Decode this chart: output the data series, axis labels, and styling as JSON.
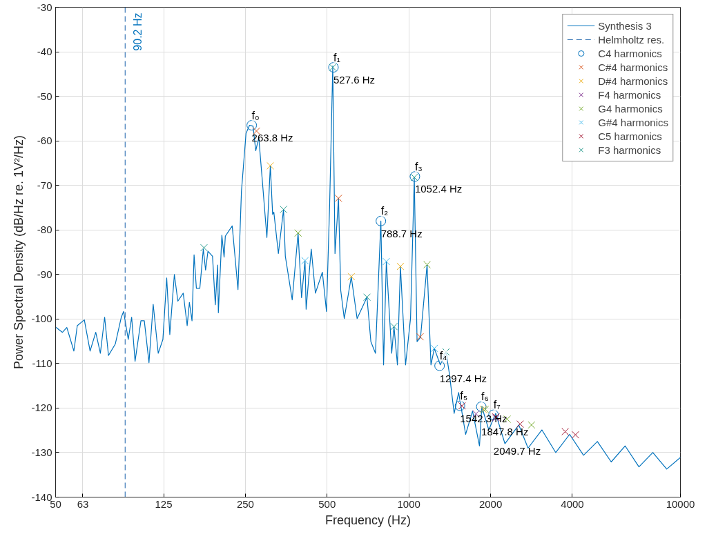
{
  "chart_data": {
    "type": "line",
    "xlabel": "Frequency (Hz)",
    "ylabel": "Power Spectral Density (dB/Hz re. 1V²/Hz)",
    "log": "x",
    "xlim": [
      50,
      10000
    ],
    "xticks": [
      50,
      63,
      125,
      250,
      500,
      1000,
      2000,
      4000,
      10000
    ],
    "ylim": [
      -140,
      -30
    ],
    "yticks": [
      -140,
      -130,
      -120,
      -110,
      -100,
      -90,
      -80,
      -70,
      -60,
      -50,
      -40,
      -30
    ],
    "grid": true,
    "legend": "top right",
    "series": [
      {
        "name": "Synthesis 3",
        "color": "#0072bd",
        "x": [
          50,
          53.0,
          55.0,
          58.4,
          60.1,
          63.8,
          67.0,
          70.3,
          73.1,
          75.8,
          78.3,
          83.0,
          87.3,
          89.0,
          92.6,
          95.3,
          98.1,
          103.1,
          106.1,
          110.4,
          114.4,
          119.4,
          124.2,
          128.3,
          131.7,
          136.9,
          141.0,
          147.6,
          152.6,
          155.5,
          159.0,
          161.8,
          165.0,
          169.9,
          175.0,
          178.4,
          182.0,
          189.2,
          193.7,
          197.6,
          198.8,
          204.8,
          208.7,
          210.9,
          223.6,
          234.8,
          241.8,
          251.4,
          259.0,
          266.7,
          273.0,
          280.1,
          288.4,
          300.0,
          308.9,
          315.0,
          318.2,
          330.7,
          345.5,
          350.8,
          371.9,
          390.9,
          402.5,
          414.5,
          418.4,
          437.0,
          452.7,
          480.2,
          497.3,
          511.0,
          524.5,
          534.5,
          550.6,
          561.2,
          578.2,
          613.6,
          644.7,
          701.0,
          724.6,
          753.3,
          788.6,
          806.9,
          826.0,
          864.5,
          881.5,
          907.4,
          930.8,
          972.4,
          1014,
          1047,
          1072,
          1104,
          1167,
          1206,
          1241,
          1305,
          1370,
          1411,
          1468,
          1525,
          1556,
          1618,
          1716,
          1820,
          1856,
          1969,
          2088,
          2258,
          2540,
          2747,
          3089,
          3475,
          3908,
          4397,
          4945,
          5561,
          6256,
          7036,
          7913,
          8904,
          10000
        ],
        "values": [
          -101.8,
          -103.0,
          -101.9,
          -107.2,
          -101.5,
          -100.2,
          -107.2,
          -103.0,
          -107.7,
          -99.6,
          -108.2,
          -105.6,
          -99.6,
          -98.3,
          -104.6,
          -99.6,
          -109.5,
          -100.4,
          -100.4,
          -109.8,
          -96.7,
          -107.7,
          -104.6,
          -90.8,
          -103.5,
          -90.0,
          -96.0,
          -94.2,
          -101.5,
          -96.3,
          -100.4,
          -85.6,
          -93.1,
          -93.1,
          -84.3,
          -89.0,
          -84.8,
          -85.9,
          -96.8,
          -87.9,
          -98.6,
          -81.2,
          -86.1,
          -81.4,
          -79.1,
          -93.4,
          -71.3,
          -58.3,
          -56.5,
          -56.7,
          -62.2,
          -59.3,
          -68.7,
          -81.7,
          -65.6,
          -76.5,
          -76.0,
          -85.3,
          -75.4,
          -85.9,
          -95.7,
          -80.7,
          -95.2,
          -86.9,
          -97.8,
          -84.3,
          -94.2,
          -89.5,
          -98.3,
          -73.9,
          -43.2,
          -85.3,
          -72.9,
          -93.6,
          -99.9,
          -90.5,
          -99.9,
          -95.1,
          -105.1,
          -107.7,
          -78.0,
          -110.3,
          -87.1,
          -107.7,
          -101.7,
          -110.3,
          -88.2,
          -110.3,
          -99.9,
          -68.2,
          -105.1,
          -104.1,
          -87.8,
          -110.3,
          -106.6,
          -110.3,
          -107.4,
          -112.4,
          -121.2,
          -116.5,
          -119.7,
          -125.9,
          -120.7,
          -128.5,
          -119.7,
          -124.9,
          -121.2,
          -128.0,
          -123.8,
          -129.0,
          -124.9,
          -130.0,
          -125.9,
          -130.6,
          -127.5,
          -132.1,
          -128.5,
          -133.2,
          -130.0,
          -133.7,
          -131.1
        ]
      },
      {
        "name": "Helmholtz res.",
        "type": "line",
        "line_style": "dashed",
        "color": "#3d7ab8",
        "x": [
          90.2,
          90.2
        ],
        "values": [
          -140,
          -30
        ]
      },
      {
        "name": "C4 harmonics",
        "type": "scatter",
        "marker": "circle",
        "color": "#0072bd",
        "x": [
          263.8,
          527.6,
          788.7,
          1052.4,
          1297.4,
          1542.3,
          1847.8,
          2049.7
        ],
        "values": [
          -56.5,
          -43.5,
          -78.0,
          -68.0,
          -110.5,
          -119.5,
          -119.7,
          -121.5
        ]
      },
      {
        "name": "C#4 harmonics",
        "type": "scatter",
        "marker": "cross",
        "color": "#d95319",
        "x": [
          274.7,
          550.6,
          1100
        ],
        "values": [
          -57.8,
          -72.9,
          -104.0
        ]
      },
      {
        "name": "D#4 harmonics",
        "type": "scatter",
        "marker": "cross",
        "color": "#edb120",
        "x": [
          308.9,
          613.6,
          930.8,
          1880
        ],
        "values": [
          -65.6,
          -90.5,
          -88.2,
          -120.3
        ]
      },
      {
        "name": "F4 harmonics",
        "type": "scatter",
        "marker": "cross",
        "color": "#7e2f8e",
        "x": [
          1767,
          2088
        ],
        "values": [
          -121.3,
          -122.2
        ]
      },
      {
        "name": "G4 harmonics",
        "type": "scatter",
        "marker": "cross",
        "color": "#77ac30",
        "x": [
          390.9,
          1167,
          1912,
          2302,
          2828
        ],
        "values": [
          -80.7,
          -87.8,
          -120.3,
          -122.5,
          -123.8
        ]
      },
      {
        "name": "G#4 harmonics",
        "type": "scatter",
        "marker": "cross",
        "color": "#4dbeee",
        "x": [
          414.5,
          826.0,
          1241
        ],
        "values": [
          -86.9,
          -87.1,
          -106.6
        ]
      },
      {
        "name": "C5 harmonics",
        "type": "scatter",
        "marker": "cross",
        "color": "#a2142f",
        "x": [
          1570,
          2093,
          2570,
          3765,
          4107
        ],
        "values": [
          -119.5,
          -122.0,
          -123.6,
          -125.3,
          -126.0
        ]
      },
      {
        "name": "F3 harmonics",
        "type": "scatter",
        "marker": "cross",
        "color": "#2a9d8f",
        "x": [
          176.0,
          345.5,
          524.5,
          701.0,
          881.5,
          1047,
          1370
        ],
        "values": [
          -84.0,
          -75.4,
          -43.5,
          -95.1,
          -101.7,
          -68.2,
          -107.4
        ]
      }
    ],
    "annotations": [
      {
        "text": "f₀",
        "x": 263.8,
        "y": -56.5
      },
      {
        "text": "263.8 Hz",
        "x": 263.8,
        "y": -56.5
      },
      {
        "text": "f₁",
        "x": 527.6,
        "y": -43.5
      },
      {
        "text": "527.6 Hz",
        "x": 527.6,
        "y": -43.5
      },
      {
        "text": "f₂",
        "x": 788.7,
        "y": -78.0
      },
      {
        "text": "788.7 Hz",
        "x": 788.7,
        "y": -78.0
      },
      {
        "text": "f₃",
        "x": 1052.4,
        "y": -68.0
      },
      {
        "text": "1052.4 Hz",
        "x": 1052.4,
        "y": -68.0
      },
      {
        "text": "f₄",
        "x": 1297.4,
        "y": -110.5
      },
      {
        "text": "1297.4 Hz",
        "x": 1297.4,
        "y": -110.5
      },
      {
        "text": "f₅",
        "x": 1542.3,
        "y": -119.5
      },
      {
        "text": "1542.3 Hz",
        "x": 1542.3,
        "y": -119.5
      },
      {
        "text": "f₆",
        "x": 1847.8,
        "y": -119.7
      },
      {
        "text": "1847.8 Hz",
        "x": 1847.8,
        "y": -119.7
      },
      {
        "text": "f₇",
        "x": 2049.7,
        "y": -121.5
      },
      {
        "text": "2049.7 Hz",
        "x": 2049.7,
        "y": -121.5
      },
      {
        "text": "90.2 Hz",
        "x": 90.2
      }
    ]
  }
}
